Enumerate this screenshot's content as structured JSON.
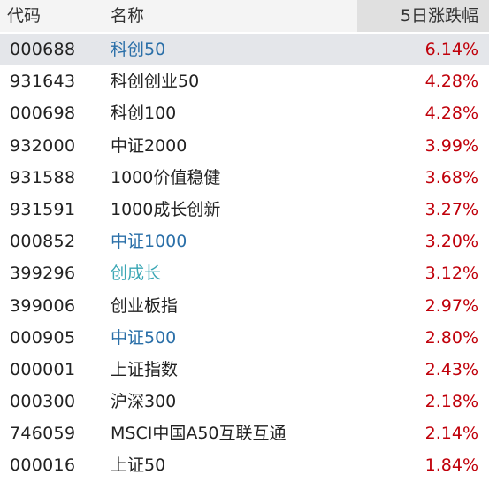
{
  "header": {
    "code_label": "代码",
    "name_label": "名称",
    "change_label": "5日涨跌幅"
  },
  "colors": {
    "positive": "#c0000a",
    "link": "#2a6fa8",
    "teal_link": "#3ba7b5",
    "selected_row": "#e4e6ea"
  },
  "rows": [
    {
      "code": "000688",
      "name": "科创50",
      "change": "6.14%"
    },
    {
      "code": "931643",
      "name": "科创创业50",
      "change": "4.28%"
    },
    {
      "code": "000698",
      "name": "科创100",
      "change": "4.28%"
    },
    {
      "code": "932000",
      "name": "中证2000",
      "change": "3.99%"
    },
    {
      "code": "931588",
      "name": "1000价值稳健",
      "change": "3.68%"
    },
    {
      "code": "931591",
      "name": "1000成长创新",
      "change": "3.27%"
    },
    {
      "code": "000852",
      "name": "中证1000",
      "change": "3.20%"
    },
    {
      "code": "399296",
      "name": "创成长",
      "change": "3.12%"
    },
    {
      "code": "399006",
      "name": "创业板指",
      "change": "2.97%"
    },
    {
      "code": "000905",
      "name": "中证500",
      "change": "2.80%"
    },
    {
      "code": "000001",
      "name": "上证指数",
      "change": "2.43%"
    },
    {
      "code": "000300",
      "name": "沪深300",
      "change": "2.18%"
    },
    {
      "code": "746059",
      "name": "MSCI中国A50互联互通",
      "change": "2.14%"
    },
    {
      "code": "000016",
      "name": "上证50",
      "change": "1.84%"
    }
  ]
}
